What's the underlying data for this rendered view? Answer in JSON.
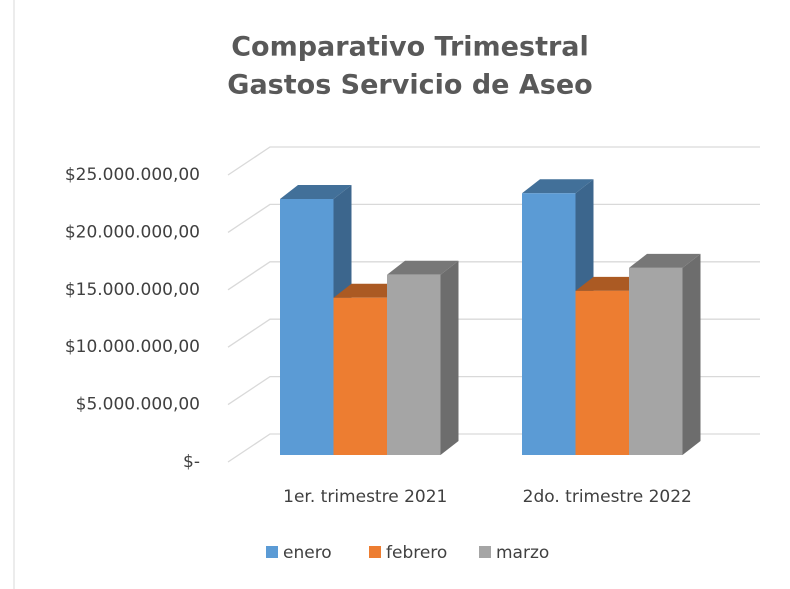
{
  "chart_data": {
    "type": "bar3d",
    "title": [
      "Comparativo Trimestral",
      "Gastos Servicio de Aseo"
    ],
    "categories": [
      "1er. trimestre 2021",
      "2do. trimestre 2022"
    ],
    "series": [
      {
        "name": "enero",
        "color": "#5b9bd5",
        "values": [
          22300000,
          22800000
        ]
      },
      {
        "name": "febrero",
        "color": "#ed7d31",
        "values": [
          13700000,
          14300000
        ]
      },
      {
        "name": "marzo",
        "color": "#a5a5a5",
        "values": [
          15700000,
          16300000
        ]
      }
    ],
    "ylim": [
      0,
      25000000
    ],
    "yticks": [
      {
        "value": 0,
        "label": "$-"
      },
      {
        "value": 5000000,
        "label": "$5.000.000,00"
      },
      {
        "value": 10000000,
        "label": "$10.000.000,00"
      },
      {
        "value": 15000000,
        "label": "$15.000.000,00"
      },
      {
        "value": 20000000,
        "label": "$20.000.000,00"
      },
      {
        "value": 25000000,
        "label": "$25.000.000,00"
      }
    ],
    "grid": true,
    "legend": "bottom"
  }
}
